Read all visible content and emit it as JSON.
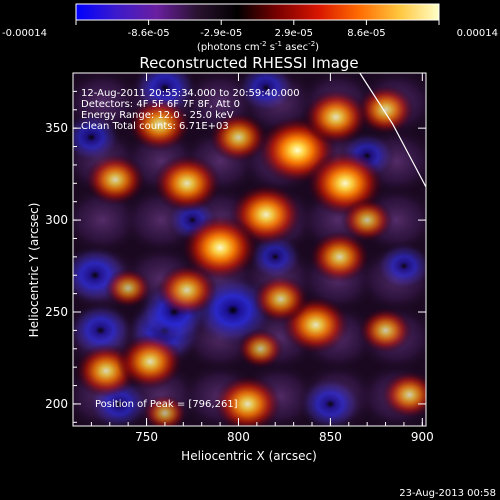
{
  "chart_data": {
    "type": "heatmap",
    "title": "Reconstructed RHESSI Image",
    "xlabel": "Heliocentric X (arcsec)",
    "ylabel": "Heliocentric Y (arcsec)",
    "xlim": [
      710,
      902
    ],
    "ylim": [
      188,
      380
    ],
    "xticks": [
      750,
      800,
      850,
      900
    ],
    "yticks": [
      200,
      250,
      300,
      350
    ],
    "colorbar": {
      "ticks": [
        "-0.00014",
        "-8.6e-05",
        "-2.9e-05",
        "2.9e-05",
        "8.6e-05",
        "0.00014"
      ],
      "label": "(photons cm",
      "label_sup1": "-2",
      "label_mid": " s",
      "label_sup2": "-1",
      "label_end": " asec",
      "label_sup3": "-2",
      "label_close": ")",
      "colors": [
        "#0000ff",
        "#3c1acc",
        "#6a1fa0",
        "#2a1230",
        "#000000",
        "#7a0000",
        "#d81500",
        "#ff6a00",
        "#ffc53c",
        "#ffffc8"
      ]
    },
    "info": [
      "12-Aug-2011 20:55:34.000 to 20:59:40.000",
      "Detectors: 4F 5F 6F 7F 8F, Att 0",
      "Energy Range: 12.0 - 25.0 keV",
      "Clean     Total counts: 6.71E+03"
    ],
    "peak_text": "Position of Peak = [796,261]",
    "peak": [
      796,
      261
    ],
    "total_counts": "6.71E+03",
    "sources": [
      {
        "x": 832,
        "y": 338,
        "v": 1.0
      },
      {
        "x": 858,
        "y": 320,
        "v": 0.95
      },
      {
        "x": 815,
        "y": 303,
        "v": 0.85
      },
      {
        "x": 790,
        "y": 285,
        "v": 0.95
      },
      {
        "x": 772,
        "y": 320,
        "v": 0.75
      },
      {
        "x": 757,
        "y": 352,
        "v": 0.65
      },
      {
        "x": 733,
        "y": 322,
        "v": 0.6
      },
      {
        "x": 772,
        "y": 262,
        "v": 0.6
      },
      {
        "x": 805,
        "y": 200,
        "v": 0.75
      },
      {
        "x": 842,
        "y": 243,
        "v": 0.75
      },
      {
        "x": 823,
        "y": 257,
        "v": 0.5
      },
      {
        "x": 855,
        "y": 280,
        "v": 0.6
      },
      {
        "x": 728,
        "y": 218,
        "v": 0.65
      },
      {
        "x": 752,
        "y": 223,
        "v": 0.7
      },
      {
        "x": 880,
        "y": 240,
        "v": 0.45
      },
      {
        "x": 880,
        "y": 360,
        "v": 0.55
      },
      {
        "x": 893,
        "y": 205,
        "v": 0.5
      },
      {
        "x": 853,
        "y": 356,
        "v": 0.7
      },
      {
        "x": 800,
        "y": 345,
        "v": 0.55
      },
      {
        "x": 740,
        "y": 263,
        "v": 0.3
      },
      {
        "x": 870,
        "y": 300,
        "v": 0.4
      },
      {
        "x": 812,
        "y": 230,
        "v": 0.3
      },
      {
        "x": 760,
        "y": 195,
        "v": 0.25
      }
    ],
    "negatives": [
      {
        "x": 797,
        "y": 251,
        "v": 1.0
      },
      {
        "x": 760,
        "y": 240,
        "v": 0.85
      },
      {
        "x": 765,
        "y": 250,
        "v": 0.75
      },
      {
        "x": 722,
        "y": 270,
        "v": 0.7
      },
      {
        "x": 725,
        "y": 240,
        "v": 0.6
      },
      {
        "x": 760,
        "y": 372,
        "v": 0.6
      },
      {
        "x": 815,
        "y": 372,
        "v": 0.45
      },
      {
        "x": 735,
        "y": 200,
        "v": 0.5
      },
      {
        "x": 850,
        "y": 200,
        "v": 0.55
      },
      {
        "x": 870,
        "y": 335,
        "v": 0.4
      },
      {
        "x": 720,
        "y": 345,
        "v": 0.45
      },
      {
        "x": 820,
        "y": 280,
        "v": 0.35
      },
      {
        "x": 890,
        "y": 275,
        "v": 0.4
      },
      {
        "x": 775,
        "y": 300,
        "v": 0.3
      }
    ],
    "limb": [
      [
        866,
        380
      ],
      [
        884,
        352
      ],
      [
        902,
        318
      ]
    ],
    "grid": false
  },
  "footer": {
    "date": "23-Aug-2013 00:58"
  }
}
